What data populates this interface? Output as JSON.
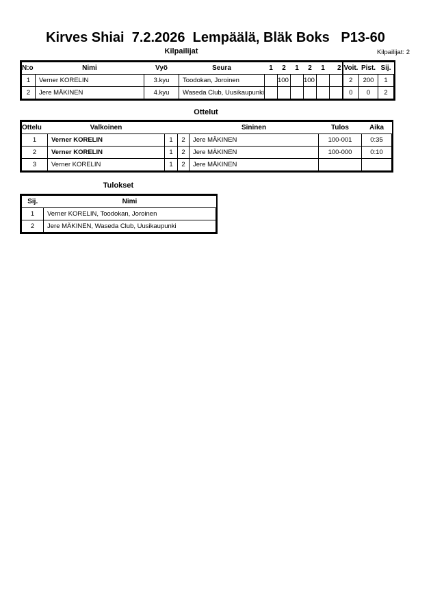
{
  "title": "Kirves Shiai  7.2.2026  Lempäälä, Bläk Boks   P13-60",
  "competitors": {
    "heading": "Kilpailijat",
    "count_label": "Kilpailijat: 2",
    "columns": [
      "N:o",
      "Nimi",
      "Vyö",
      "Seura",
      "1",
      "2",
      "1",
      "2",
      "1",
      "2",
      "Voit.",
      "Pist.",
      "Sij."
    ],
    "rows": [
      {
        "no": "1",
        "name": "Verner KORELIN",
        "belt": "3.kyu",
        "club": "Toodokan, Joroinen",
        "scores": [
          "",
          "100",
          "",
          "100",
          "",
          ""
        ],
        "wins": "2",
        "points": "200",
        "rank": "1"
      },
      {
        "no": "2",
        "name": "Jere MÄKINEN",
        "belt": "4.kyu",
        "club": "Waseda Club, Uusikaupunki",
        "scores": [
          "",
          "",
          "",
          "",
          "",
          ""
        ],
        "wins": "0",
        "points": "0",
        "rank": "2"
      }
    ]
  },
  "matches": {
    "heading": "Ottelut",
    "columns": [
      "Ottelu",
      "Valkoinen",
      "Sininen",
      "Tulos",
      "Aika"
    ],
    "rows": [
      {
        "no": "1",
        "white": "Verner KORELIN",
        "w": "1",
        "b": "2",
        "blue": "Jere MÄKINEN",
        "result": "100-001",
        "time": "0:35",
        "winner": "white"
      },
      {
        "no": "2",
        "white": "Verner KORELIN",
        "w": "1",
        "b": "2",
        "blue": "Jere MÄKINEN",
        "result": "100-000",
        "time": "0:10",
        "winner": "white"
      },
      {
        "no": "3",
        "white": "Verner KORELIN",
        "w": "1",
        "b": "2",
        "blue": "Jere MÄKINEN",
        "result": "",
        "time": "",
        "winner": ""
      }
    ]
  },
  "results": {
    "heading": "Tulokset",
    "columns": [
      "Sij.",
      "Nimi"
    ],
    "rows": [
      {
        "rank": "1",
        "name": "Verner KORELIN, Toodokan, Joroinen"
      },
      {
        "rank": "2",
        "name": "Jere MÄKINEN, Waseda Club, Uusikaupunki"
      }
    ]
  }
}
